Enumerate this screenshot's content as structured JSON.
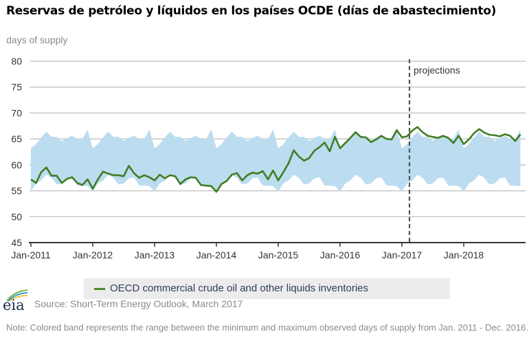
{
  "title": "Reservas de petróleo y líquidos en los países OCDE (días de abastecimiento)",
  "legend": {
    "label": "OECD commercial crude oil and other liquids inventories",
    "color": "#4a8a2a"
  },
  "source": "Source: Short-Term Energy Outlook, March 2017",
  "logo_text": "eia",
  "note": "Note: Colored band represents the range between the minimum and maximum observed days of supply from Jan. 2011 - Dec. 2016.",
  "chart_data": {
    "type": "line",
    "title": "Reservas de petróleo y líquidos en los países OCDE (días de abastecimiento)",
    "ylabel": "days of supply",
    "xlabel": "",
    "ylim": [
      45,
      80
    ],
    "yticks": [
      45,
      50,
      55,
      60,
      65,
      70,
      75,
      80
    ],
    "xticks": [
      "Jan-2011",
      "Jan-2012",
      "Jan-2013",
      "Jan-2014",
      "Jan-2015",
      "Jan-2016",
      "Jan-2017",
      "Jan-2018"
    ],
    "x_start": "Jan-2011",
    "x_end": "Dec-2018",
    "frequency": "monthly",
    "grid": true,
    "legend_position": "bottom",
    "projection_start": "Mar-2017",
    "projection_label": "projections",
    "colors": {
      "line": "#3f7d22",
      "band": "#bcdcf0",
      "grid": "#c8c8c8",
      "projection": "#555555"
    },
    "series": [
      {
        "name": "OECD commercial crude oil and other liquids inventories",
        "values": [
          57.2,
          56.5,
          58.6,
          59.5,
          57.9,
          57.9,
          56.5,
          57.3,
          57.6,
          56.5,
          56.1,
          57.2,
          55.4,
          57.2,
          58.7,
          58.3,
          58.0,
          58.0,
          57.8,
          59.8,
          58.4,
          57.5,
          58.0,
          57.6,
          57.0,
          58.1,
          57.4,
          58.0,
          57.8,
          56.3,
          57.2,
          57.6,
          57.5,
          56.1,
          56.0,
          55.9,
          54.8,
          56.3,
          56.9,
          58.1,
          58.4,
          57.0,
          58.0,
          58.5,
          58.3,
          58.8,
          57.2,
          58.9,
          57.0,
          58.6,
          60.3,
          62.8,
          61.6,
          60.8,
          61.3,
          62.7,
          63.4,
          64.3,
          62.6,
          65.4,
          63.2,
          64.2,
          65.2,
          66.3,
          65.4,
          65.3,
          64.4,
          64.9,
          65.6,
          65.0,
          64.9,
          66.7,
          65.3,
          65.5,
          66.6,
          67.3,
          66.3,
          65.6,
          65.4,
          65.2,
          65.6,
          65.2,
          64.2,
          65.6,
          64.0,
          64.9,
          66.1,
          66.9,
          66.2,
          65.8,
          65.7,
          65.5,
          65.9,
          65.6,
          64.6,
          65.9
        ]
      }
    ],
    "band": {
      "name": "Range of min/max observed days of supply (Jan 2011 - Dec 2016)",
      "monthly_max": [
        63.2,
        64.0,
        65.3,
        66.4,
        65.4,
        65.4,
        64.6,
        65.2,
        65.6,
        65.0,
        65.0,
        66.8
      ],
      "monthly_min": [
        54.9,
        56.4,
        57.0,
        58.1,
        57.5,
        56.2,
        56.4,
        57.4,
        57.6,
        56.0,
        56.0,
        55.9
      ]
    }
  }
}
